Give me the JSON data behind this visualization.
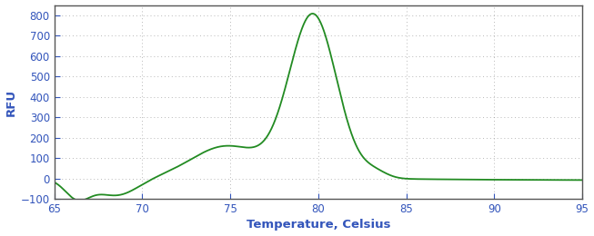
{
  "title": "",
  "xlabel": "Temperature, Celsius",
  "ylabel": "RFU",
  "xlim": [
    65,
    95
  ],
  "ylim": [
    -100,
    850
  ],
  "yticks": [
    -100,
    0,
    100,
    200,
    300,
    400,
    500,
    600,
    700,
    800
  ],
  "xticks": [
    65,
    70,
    75,
    80,
    85,
    90,
    95
  ],
  "line_color": "#228B22",
  "bg_color": "#ffffff",
  "plot_bg_color": "#ffffff",
  "grid_color": "#888888",
  "label_color": "#3355bb",
  "tick_color": "#3355bb",
  "spine_color": "#555555",
  "figsize": [
    6.53,
    2.6
  ],
  "dpi": 100
}
